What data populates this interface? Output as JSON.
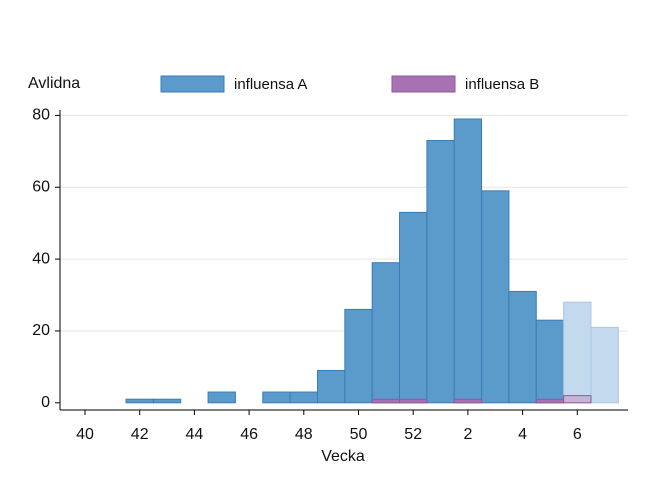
{
  "chart_data": {
    "type": "bar",
    "y_label": "Avlidna",
    "x_label": "Vecka",
    "categories": [
      40,
      null,
      42,
      null,
      44,
      null,
      46,
      null,
      48,
      null,
      50,
      null,
      52,
      null,
      2,
      null,
      4,
      null,
      6,
      null
    ],
    "series": [
      {
        "name": "influensa A",
        "color": "#5b9bcc",
        "colors": [
          "#5b9bcc",
          "#5b9bcc",
          "#5b9bcc",
          "#5b9bcc",
          "#5b9bcc",
          "#5b9bcc",
          "#5b9bcc",
          "#5b9bcc",
          "#5b9bcc",
          "#5b9bcc",
          "#5b9bcc",
          "#5b9bcc",
          "#5b9bcc",
          "#5b9bcc",
          "#5b9bcc",
          "#5b9bcc",
          "#5b9bcc",
          "#5b9bcc",
          "#c3daee",
          "#c3daee"
        ],
        "values": [
          0,
          0,
          1,
          1,
          0,
          3,
          0,
          3,
          3,
          9,
          26,
          39,
          53,
          73,
          79,
          59,
          31,
          23,
          28,
          21
        ]
      },
      {
        "name": "influensa B",
        "color": "#a672b3",
        "colors": [
          "#a672b3",
          "#a672b3",
          "#a672b3",
          "#a672b3",
          "#a672b3",
          "#a672b3",
          "#a672b3",
          "#a672b3",
          "#a672b3",
          "#a672b3",
          "#a672b3",
          "#a672b3",
          "#a672b3",
          "#a672b3",
          "#a672b3",
          "#a672b3",
          "#a672b3",
          "#a672b3",
          "#c9b2d4",
          "#c9b2d4"
        ],
        "values": [
          0,
          0,
          0,
          0,
          0,
          0,
          0,
          0,
          0,
          0,
          0,
          1,
          1,
          0,
          1,
          0,
          0,
          1,
          2,
          0
        ]
      }
    ],
    "ylim": [
      -2,
      81.5
    ],
    "yticks": [
      0,
      20,
      40,
      60,
      80
    ],
    "grid": true
  }
}
